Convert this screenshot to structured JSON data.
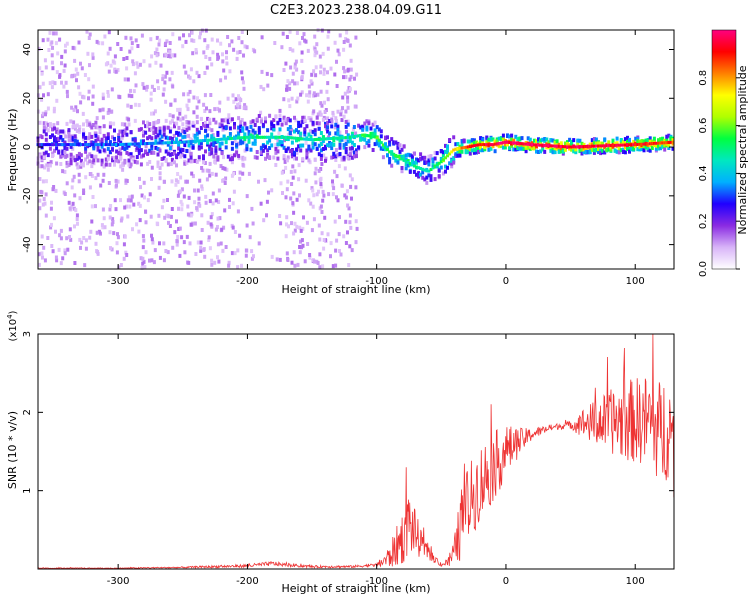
{
  "figure": {
    "title": "C2E3.2023.238.04.09.G11"
  },
  "chart_data": [
    {
      "type": "heatmap",
      "xlabel": "Height of straight line (km)",
      "ylabel": "Frequency (Hz)",
      "xlim": [
        -362,
        130
      ],
      "ylim": [
        -50,
        48
      ],
      "x_ticks": [
        -300,
        -200,
        -100,
        0,
        100
      ],
      "y_ticks": [
        -40,
        -20,
        0,
        20,
        40
      ],
      "grid": false,
      "colorbar": {
        "label": "Normalized spectral amplitude",
        "range": [
          0.0,
          1.0
        ],
        "ticks": [
          0.0,
          0.2,
          0.4,
          0.6,
          0.8
        ],
        "colors": [
          "#ffffff",
          "#d8b4f8",
          "#8a2be2",
          "#2000ff",
          "#00b0ff",
          "#00e8c0",
          "#00ff40",
          "#b0ff00",
          "#ffff00",
          "#ff8000",
          "#ff0000",
          "#ff0080"
        ]
      },
      "ridge": {
        "x": [
          -362,
          -300,
          -250,
          -200,
          -170,
          -150,
          -120,
          -110,
          -100,
          -90,
          -80,
          -70,
          -60,
          -50,
          -40,
          -30,
          -20,
          -10,
          0,
          20,
          50,
          100,
          130
        ],
        "freq": [
          1,
          1,
          2,
          4,
          4,
          3,
          4,
          5,
          4,
          -2,
          -5,
          -8,
          -10,
          -6,
          -1,
          0,
          1,
          1,
          2,
          1,
          0,
          1,
          2
        ],
        "amplitude": [
          0.25,
          0.3,
          0.35,
          0.45,
          0.45,
          0.45,
          0.45,
          0.5,
          0.55,
          0.5,
          0.5,
          0.45,
          0.45,
          0.55,
          0.7,
          0.85,
          0.9,
          0.92,
          0.95,
          0.95,
          0.95,
          0.9,
          0.85
        ]
      },
      "noise_region_x": [
        -362,
        -115
      ]
    },
    {
      "type": "line",
      "xlabel": "Height of straight line (km)",
      "ylabel": "SNR (10 * v/v)",
      "scale_label": "(x10",
      "scale_exponent": "4",
      "scale_close": ")",
      "xlim": [
        -362,
        130
      ],
      "ylim": [
        0,
        3.0
      ],
      "x_ticks": [
        -300,
        -200,
        -100,
        0,
        100
      ],
      "y_ticks": [
        1,
        2,
        3
      ],
      "grid": false,
      "color": "#ee3333",
      "series": [
        {
          "x": [
            -362,
            -300,
            -250,
            -200,
            -180,
            -170,
            -150,
            -120,
            -100,
            -90,
            -80,
            -75,
            -70,
            -65,
            -60,
            -55,
            -50,
            -45,
            -40,
            -35,
            -30,
            -25,
            -20,
            -10,
            0,
            10,
            20,
            30,
            40,
            50,
            60,
            70,
            80,
            90,
            100,
            110,
            115,
            120,
            125,
            130
          ],
          "y": [
            0.01,
            0.01,
            0.02,
            0.04,
            0.07,
            0.05,
            0.03,
            0.03,
            0.05,
            0.15,
            0.4,
            0.6,
            0.45,
            0.3,
            0.2,
            0.12,
            0.06,
            0.08,
            0.2,
            0.55,
            0.8,
            0.95,
            1.1,
            1.3,
            1.5,
            1.62,
            1.72,
            1.78,
            1.82,
            1.84,
            1.86,
            1.87,
            1.88,
            1.89,
            1.9,
            1.9,
            1.85,
            1.7,
            1.9,
            1.5
          ],
          "noise": [
            0.005,
            0.005,
            0.01,
            0.02,
            0.03,
            0.02,
            0.015,
            0.015,
            0.02,
            0.15,
            0.35,
            0.4,
            0.3,
            0.15,
            0.08,
            0.05,
            0.03,
            0.06,
            0.2,
            0.45,
            0.5,
            0.5,
            0.5,
            0.45,
            0.35,
            0.18,
            0.08,
            0.05,
            0.04,
            0.05,
            0.2,
            0.3,
            0.4,
            0.5,
            0.55,
            0.6,
            0.65,
            0.7,
            0.75,
            0.6
          ]
        }
      ]
    }
  ]
}
